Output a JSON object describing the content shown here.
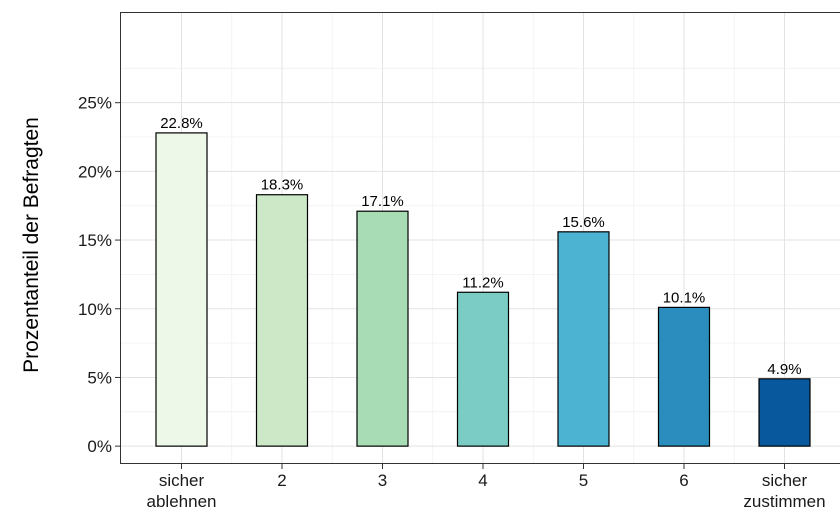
{
  "chart_data": {
    "type": "bar",
    "ylabel": "Prozentanteil der Befragten",
    "xlabel": "",
    "categories": [
      [
        "sicher",
        "ablehnen"
      ],
      [
        "2"
      ],
      [
        "3"
      ],
      [
        "4"
      ],
      [
        "5"
      ],
      [
        "6"
      ],
      [
        "sicher",
        "zustimmen"
      ]
    ],
    "values": [
      22.8,
      18.3,
      17.1,
      11.2,
      15.6,
      10.1,
      4.9
    ],
    "data_labels": [
      "22.8%",
      "18.3%",
      "17.1%",
      "11.2%",
      "15.6%",
      "10.1%",
      "4.9%"
    ],
    "colors": [
      "#edf8e9",
      "#cce8c6",
      "#a8dcb5",
      "#7bccc4",
      "#4db3d3",
      "#2b8cbe",
      "#08589e"
    ],
    "y_ticks": [
      0,
      5,
      10,
      15,
      20,
      25
    ],
    "y_tick_labels": [
      "0%",
      "5%",
      "10%",
      "15%",
      "20%",
      "25%"
    ],
    "ylim": [
      -1.3,
      31.6
    ],
    "grid": true,
    "legend": "none"
  }
}
